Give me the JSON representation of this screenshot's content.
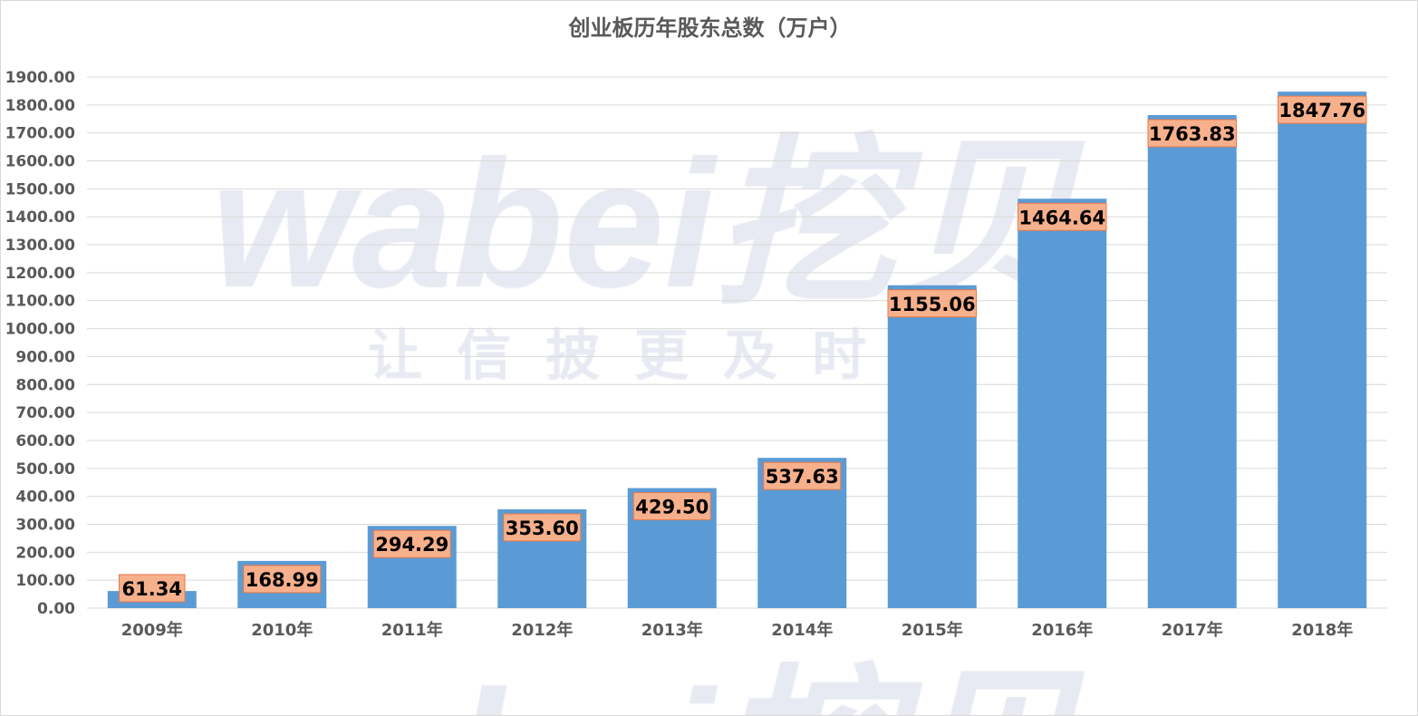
{
  "chart_data": {
    "type": "bar",
    "title": "创业板历年股东总数（万户）",
    "categories": [
      "2009年",
      "2010年",
      "2011年",
      "2012年",
      "2013年",
      "2014年",
      "2015年",
      "2016年",
      "2017年",
      "2018年"
    ],
    "values": [
      61.34,
      168.99,
      294.29,
      353.6,
      429.5,
      537.63,
      1155.06,
      1464.64,
      1763.83,
      1847.76
    ],
    "ylim": [
      0,
      1900
    ],
    "ytick_step": 100,
    "grid": true,
    "xlabel": "",
    "ylabel": "",
    "colors": {
      "bar": "#5B9BD5",
      "label_fill": "#F7B08C",
      "label_border": "#E5784A",
      "grid": "#d9d9d9",
      "axis_text": "#595959"
    }
  },
  "watermark": {
    "brand": "wabei挖贝",
    "slogan": "让信披更及时"
  }
}
